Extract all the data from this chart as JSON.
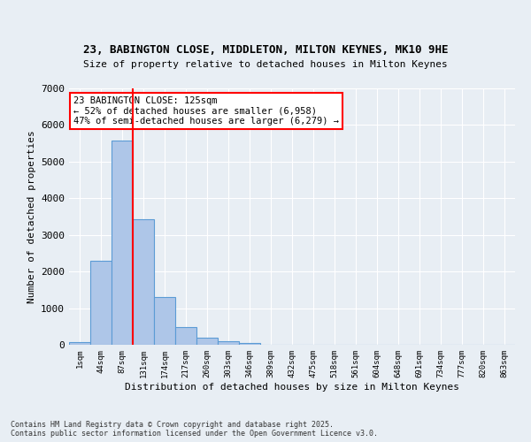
{
  "title1": "23, BABINGTON CLOSE, MIDDLETON, MILTON KEYNES, MK10 9HE",
  "title2": "Size of property relative to detached houses in Milton Keynes",
  "xlabel": "Distribution of detached houses by size in Milton Keynes",
  "ylabel": "Number of detached properties",
  "bin_labels": [
    "1sqm",
    "44sqm",
    "87sqm",
    "131sqm",
    "174sqm",
    "217sqm",
    "260sqm",
    "303sqm",
    "346sqm",
    "389sqm",
    "432sqm",
    "475sqm",
    "518sqm",
    "561sqm",
    "604sqm",
    "648sqm",
    "691sqm",
    "734sqm",
    "777sqm",
    "820sqm",
    "863sqm"
  ],
  "bar_values": [
    70,
    2300,
    5570,
    3420,
    1310,
    490,
    185,
    95,
    50,
    10,
    0,
    0,
    0,
    0,
    0,
    0,
    0,
    0,
    0,
    0,
    0
  ],
  "bar_color": "#aec6e8",
  "bar_edge_color": "#5b9bd5",
  "annotation_text": "23 BABINGTON CLOSE: 125sqm\n← 52% of detached houses are smaller (6,958)\n47% of semi-detached houses are larger (6,279) →",
  "annotation_box_color": "white",
  "annotation_box_edge": "red",
  "background_color": "#e8eef4",
  "grid_color": "white",
  "footer": "Contains HM Land Registry data © Crown copyright and database right 2025.\nContains public sector information licensed under the Open Government Licence v3.0.",
  "ylim": [
    0,
    7000
  ],
  "yticks": [
    0,
    1000,
    2000,
    3000,
    4000,
    5000,
    6000,
    7000
  ],
  "vline_x": 2.5
}
